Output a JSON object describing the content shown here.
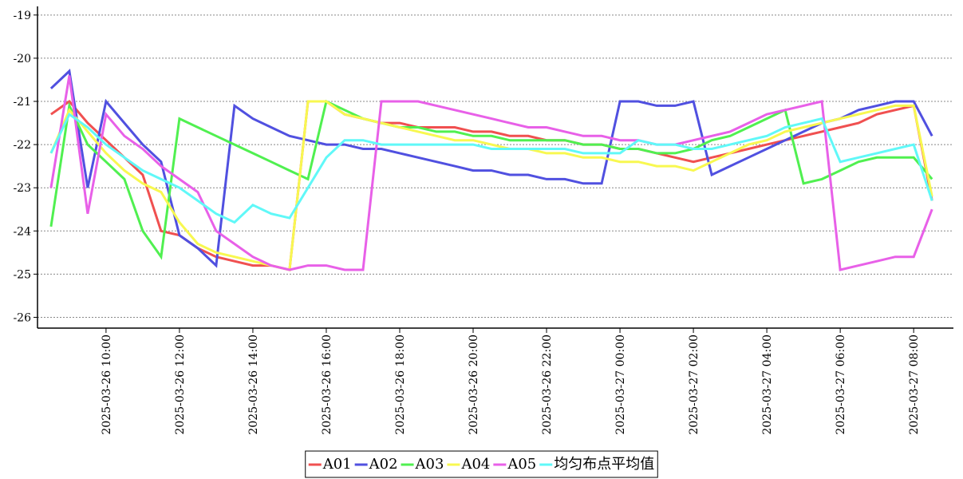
{
  "chart_data": {
    "type": "line",
    "x": [
      "2025-03-26 08:30",
      "2025-03-26 09:00",
      "2025-03-26 09:30",
      "2025-03-26 10:00",
      "2025-03-26 10:30",
      "2025-03-26 11:00",
      "2025-03-26 11:30",
      "2025-03-26 12:00",
      "2025-03-26 12:30",
      "2025-03-26 13:00",
      "2025-03-26 13:30",
      "2025-03-26 14:00",
      "2025-03-26 14:30",
      "2025-03-26 15:00",
      "2025-03-26 15:30",
      "2025-03-26 16:00",
      "2025-03-26 16:30",
      "2025-03-26 17:00",
      "2025-03-26 17:30",
      "2025-03-26 18:00",
      "2025-03-26 18:30",
      "2025-03-26 19:00",
      "2025-03-26 19:30",
      "2025-03-26 20:00",
      "2025-03-26 20:30",
      "2025-03-26 21:00",
      "2025-03-26 21:30",
      "2025-03-26 22:00",
      "2025-03-26 22:30",
      "2025-03-26 23:00",
      "2025-03-26 23:30",
      "2025-03-27 00:00",
      "2025-03-27 00:30",
      "2025-03-27 01:00",
      "2025-03-27 01:30",
      "2025-03-27 02:00",
      "2025-03-27 02:30",
      "2025-03-27 03:00",
      "2025-03-27 03:30",
      "2025-03-27 04:00",
      "2025-03-27 04:30",
      "2025-03-27 05:00",
      "2025-03-27 05:30",
      "2025-03-27 06:00",
      "2025-03-27 06:30",
      "2025-03-27 07:00",
      "2025-03-27 07:30",
      "2025-03-27 08:00",
      "2025-03-27 08:30"
    ],
    "series": [
      {
        "name": "A01",
        "color": "#f05050",
        "values": [
          -21.3,
          -21.0,
          -21.5,
          -21.9,
          -22.3,
          -22.7,
          -24.0,
          -24.1,
          -24.4,
          -24.6,
          -24.7,
          -24.8,
          -24.8,
          -24.9,
          -21.0,
          -21.0,
          -21.3,
          -21.4,
          -21.5,
          -21.5,
          -21.6,
          -21.6,
          -21.6,
          -21.7,
          -21.7,
          -21.8,
          -21.8,
          -21.9,
          -21.9,
          -22.0,
          -22.0,
          -22.1,
          -22.1,
          -22.2,
          -22.3,
          -22.4,
          -22.3,
          -22.2,
          -22.1,
          -22.0,
          -21.9,
          -21.8,
          -21.7,
          -21.6,
          -21.5,
          -21.3,
          -21.2,
          -21.1,
          -23.3
        ]
      },
      {
        "name": "A02",
        "color": "#5050e0",
        "values": [
          -20.7,
          -20.3,
          -23.0,
          -21.0,
          -21.5,
          -22.0,
          -22.4,
          -24.1,
          -24.4,
          -24.8,
          -21.1,
          -21.4,
          -21.6,
          -21.8,
          -21.9,
          -22.0,
          -22.0,
          -22.1,
          -22.1,
          -22.2,
          -22.3,
          -22.4,
          -22.5,
          -22.6,
          -22.6,
          -22.7,
          -22.7,
          -22.8,
          -22.8,
          -22.9,
          -22.9,
          -21.0,
          -21.0,
          -21.1,
          -21.1,
          -21.0,
          -22.7,
          -22.5,
          -22.3,
          -22.1,
          -21.9,
          -21.7,
          -21.5,
          -21.4,
          -21.2,
          -21.1,
          -21.0,
          -21.0,
          -21.8
        ]
      },
      {
        "name": "A03",
        "color": "#50f050",
        "values": [
          -23.9,
          -21.1,
          -22.0,
          -22.4,
          -22.8,
          -24.0,
          -24.6,
          -21.4,
          -21.6,
          -21.8,
          -22.0,
          -22.2,
          -22.4,
          -22.6,
          -22.8,
          -21.0,
          -21.2,
          -21.4,
          -21.5,
          -21.6,
          -21.6,
          -21.7,
          -21.7,
          -21.8,
          -21.8,
          -21.9,
          -21.9,
          -21.9,
          -21.9,
          -22.0,
          -22.0,
          -22.1,
          -22.1,
          -22.2,
          -22.2,
          -22.1,
          -21.9,
          -21.8,
          -21.6,
          -21.4,
          -21.2,
          -22.9,
          -22.8,
          -22.6,
          -22.4,
          -22.3,
          -22.3,
          -22.3,
          -22.8
        ]
      },
      {
        "name": "A04",
        "color": "#f8f850",
        "values": [
          -22.2,
          -21.2,
          -21.7,
          -22.2,
          -22.6,
          -22.9,
          -23.1,
          -23.8,
          -24.3,
          -24.5,
          -24.6,
          -24.7,
          -24.8,
          -24.9,
          -21.0,
          -21.0,
          -21.3,
          -21.4,
          -21.5,
          -21.6,
          -21.7,
          -21.8,
          -21.9,
          -21.9,
          -22.0,
          -22.1,
          -22.1,
          -22.2,
          -22.2,
          -22.3,
          -22.3,
          -22.4,
          -22.4,
          -22.5,
          -22.5,
          -22.6,
          -22.4,
          -22.2,
          -22.0,
          -21.9,
          -21.7,
          -21.6,
          -21.5,
          -21.4,
          -21.3,
          -21.2,
          -21.1,
          -21.1,
          -23.2
        ]
      },
      {
        "name": "A05",
        "color": "#e860e8",
        "values": [
          -23.0,
          -20.4,
          -23.6,
          -21.3,
          -21.8,
          -22.1,
          -22.5,
          -22.8,
          -23.1,
          -24.0,
          -24.3,
          -24.6,
          -24.8,
          -24.9,
          -24.8,
          -24.8,
          -24.9,
          -24.9,
          -21.0,
          -21.0,
          -21.0,
          -21.1,
          -21.2,
          -21.3,
          -21.4,
          -21.5,
          -21.6,
          -21.6,
          -21.7,
          -21.8,
          -21.8,
          -21.9,
          -21.9,
          -22.0,
          -22.0,
          -21.9,
          -21.8,
          -21.7,
          -21.5,
          -21.3,
          -21.2,
          -21.1,
          -21.0,
          -24.9,
          -24.8,
          -24.7,
          -24.6,
          -24.6,
          -23.5
        ]
      },
      {
        "name": "均匀布点平均值",
        "color": "#60f8f8",
        "values": [
          -22.2,
          -21.3,
          -21.6,
          -22.0,
          -22.3,
          -22.6,
          -22.8,
          -23.0,
          -23.3,
          -23.6,
          -23.8,
          -23.4,
          -23.6,
          -23.7,
          -23.0,
          -22.3,
          -21.9,
          -21.9,
          -22.0,
          -22.0,
          -22.0,
          -22.0,
          -22.0,
          -22.0,
          -22.1,
          -22.1,
          -22.1,
          -22.1,
          -22.1,
          -22.2,
          -22.2,
          -22.2,
          -21.9,
          -22.0,
          -22.0,
          -22.1,
          -22.1,
          -22.0,
          -21.9,
          -21.8,
          -21.6,
          -21.5,
          -21.4,
          -22.4,
          -22.3,
          -22.2,
          -22.1,
          -22.0,
          -23.3
        ]
      }
    ],
    "xlim": [
      "2025-03-26 08:08",
      "2025-03-27 09:05"
    ],
    "xticks": [
      "2025-03-26 10:00",
      "2025-03-26 12:00",
      "2025-03-26 14:00",
      "2025-03-26 16:00",
      "2025-03-26 18:00",
      "2025-03-26 20:00",
      "2025-03-26 22:00",
      "2025-03-27 00:00",
      "2025-03-27 02:00",
      "2025-03-27 04:00",
      "2025-03-27 06:00",
      "2025-03-27 08:00"
    ],
    "ylim": [
      -26.25,
      -18.8
    ],
    "yticks": [
      -19,
      -20,
      -21,
      -22,
      -23,
      -24,
      -25,
      -26
    ],
    "grid": true
  }
}
